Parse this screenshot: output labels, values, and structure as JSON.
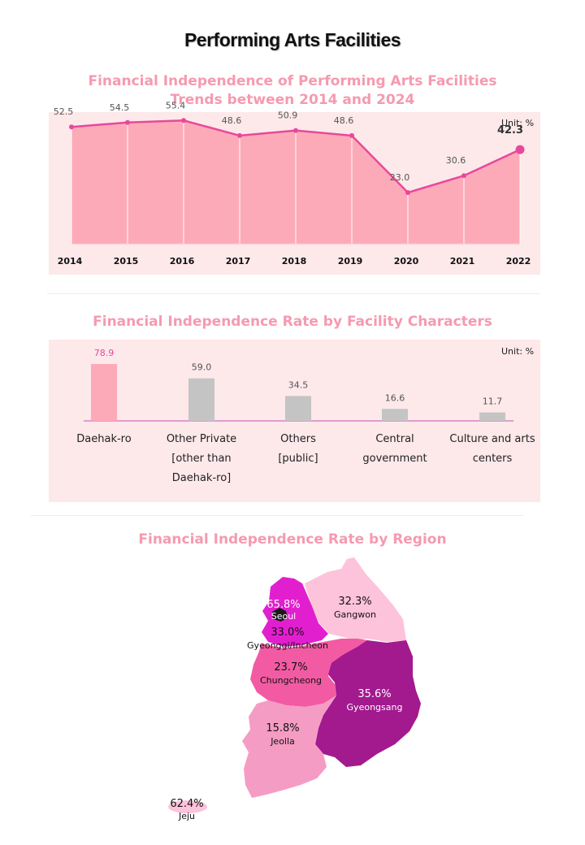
{
  "title": "Performing Arts Facilities",
  "colors": {
    "accent_pink": "#f59aaf",
    "line": "#e8489a",
    "area": "#fdaab8",
    "panel_bg": "#fde8ea",
    "bar_highlight": "#fdaab8",
    "bar_gray": "#c4c4c4"
  },
  "chart_data": [
    {
      "type": "area",
      "title": "Financial Independence of Performing Arts Facilities",
      "subtitle": "Trends between 2014 and 2024",
      "unit_label": "Unit: %",
      "x": [
        "2014",
        "2015",
        "2016",
        "2017",
        "2018",
        "2019",
        "2020",
        "2021",
        "2022"
      ],
      "series": [
        {
          "values": [
            52.5,
            54.5,
            55.4,
            48.6,
            50.9,
            48.6,
            23.0,
            30.6,
            42.3
          ]
        }
      ],
      "value_labels": [
        "52.5",
        "54.5",
        "55.4",
        "48.6",
        "50.9",
        "48.6",
        "23.0",
        "30.6",
        "42.3"
      ],
      "ylim": [
        0,
        65
      ],
      "grid": false,
      "highlight_last": true
    },
    {
      "type": "bar",
      "title": "Financial Independence Rate by Facility Characters",
      "unit_label": "Unit: %",
      "categories": [
        [
          "Daehak-ro"
        ],
        [
          "Other Private",
          "[other than",
          "Daehak-ro]"
        ],
        [
          "Others",
          "[public]"
        ],
        [
          "Central",
          "government"
        ],
        [
          "Culture and arts",
          "centers"
        ]
      ],
      "values": [
        78.9,
        59.0,
        34.5,
        16.6,
        11.7
      ],
      "value_labels": [
        "78.9",
        "59.0",
        "34.5",
        "16.6",
        "11.7"
      ],
      "ylim": [
        0,
        90
      ],
      "highlight_index": 0
    },
    {
      "type": "choropleth",
      "title": "Financial Independence Rate by Region",
      "regions": [
        {
          "name": "Seoul",
          "value": 65.8,
          "label": "65.8%",
          "color": "#e21fcf"
        },
        {
          "name": "Gyeonggi/Incheon",
          "value": 33.0,
          "label": "33.0%",
          "color": "#e21fcf"
        },
        {
          "name": "Gangwon",
          "value": 32.3,
          "label": "32.3%",
          "color": "#fdc3da"
        },
        {
          "name": "Chungcheong",
          "value": 23.7,
          "label": "23.7%",
          "color": "#f25ba3"
        },
        {
          "name": "Gyeongsang",
          "value": 35.6,
          "label": "35.6%",
          "color": "#a21a8e"
        },
        {
          "name": "Jeolla",
          "value": 15.8,
          "label": "15.8%",
          "color": "#f59cc4"
        },
        {
          "name": "Jeju",
          "value": 62.4,
          "label": "62.4%",
          "color": "#fdc3da"
        }
      ]
    }
  ]
}
